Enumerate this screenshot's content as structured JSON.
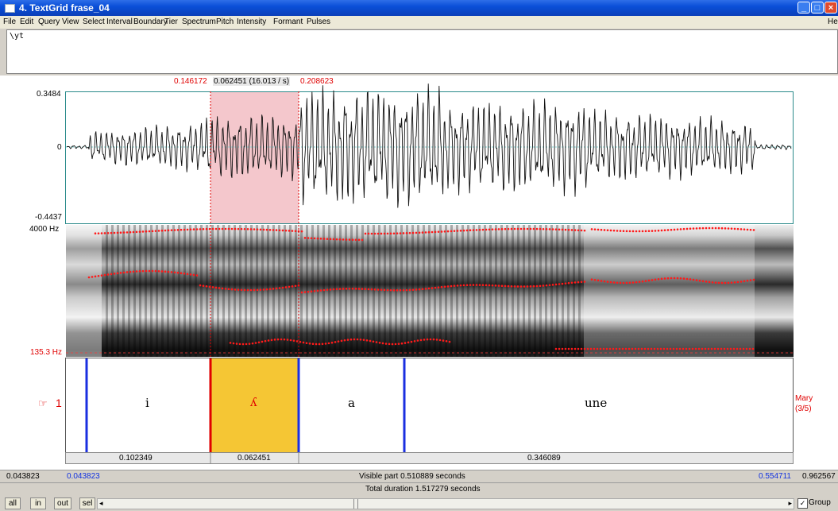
{
  "window": {
    "title": "4. TextGrid frase_04"
  },
  "menu": [
    "File",
    "Edit",
    "Query",
    "View",
    "Select",
    "Interval",
    "Boundary",
    "Tier",
    "Spectrum",
    "Pitch",
    "Intensity",
    "Formant",
    "Pulses"
  ],
  "menu_right": "He",
  "text_field": {
    "value": "\\yt"
  },
  "selection": {
    "start": "0.146172",
    "duration": "0.062451 (16.013 / s)",
    "end": "0.208623"
  },
  "waveform": {
    "ymax": "0.3484",
    "zero": "0",
    "ymin": "-0.4437"
  },
  "spectrogram": {
    "fmax": "4000 Hz",
    "fmin": "135.3 Hz"
  },
  "tier": {
    "number": "1",
    "name": "Mary",
    "count": "(3/5)",
    "intervals": [
      {
        "label": "i",
        "start": 0.043823,
        "end": 0.146172
      },
      {
        "label": "ʎ",
        "start": 0.146172,
        "end": 0.208623,
        "selected": true
      },
      {
        "label": "a",
        "start": 0.208623,
        "end": 0.284
      },
      {
        "label": "une",
        "start": 0.284,
        "end": 0.554711
      }
    ]
  },
  "durations": [
    "0.102349",
    "0.062451",
    "0.346089"
  ],
  "view": {
    "left_outer": "0.043823",
    "left_inner": "0.043823",
    "visible": "Visible part 0.510889 seconds",
    "right_inner": "0.554711",
    "right_outer": "0.962567",
    "total": "Total duration 1.517279 seconds",
    "t_start": 0.043823,
    "t_end": 0.554711
  },
  "buttons": {
    "all": "all",
    "in": "in",
    "out": "out",
    "sel": "sel",
    "group": "Group"
  },
  "colors": {
    "selection": "#f4c7cc",
    "interval_selected": "#f5c634",
    "boundary": "#1a2fe0",
    "cursor": "#e00000",
    "formant": "#ff1a1a"
  }
}
